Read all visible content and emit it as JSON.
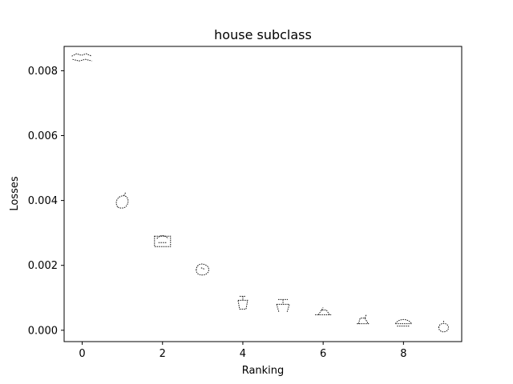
{
  "chart_data": {
    "type": "scatter",
    "title": "house subclass",
    "xlabel": "Ranking",
    "ylabel": "Losses",
    "xlim": [
      -0.45,
      9.45
    ],
    "ylim": [
      -0.00035,
      0.00875
    ],
    "xticks": [
      0,
      2,
      4,
      6,
      8
    ],
    "xtick_labels": [
      "0",
      "2",
      "4",
      "6",
      "8"
    ],
    "yticks": [
      0.0,
      0.002,
      0.004,
      0.006,
      0.008
    ],
    "ytick_labels": [
      "0.000",
      "0.002",
      "0.004",
      "0.006",
      "0.008"
    ],
    "grid": false,
    "marker": "sketch-thumbnail",
    "points": [
      {
        "x": 0,
        "y": 0.0084
      },
      {
        "x": 1,
        "y": 0.00395
      },
      {
        "x": 2,
        "y": 0.00275
      },
      {
        "x": 3,
        "y": 0.0019
      },
      {
        "x": 4,
        "y": 0.00085
      },
      {
        "x": 5,
        "y": 0.00075
      },
      {
        "x": 6,
        "y": 0.00055
      },
      {
        "x": 7,
        "y": 0.0003
      },
      {
        "x": 8,
        "y": 0.00025
      },
      {
        "x": 9,
        "y": 8e-05
      }
    ]
  }
}
